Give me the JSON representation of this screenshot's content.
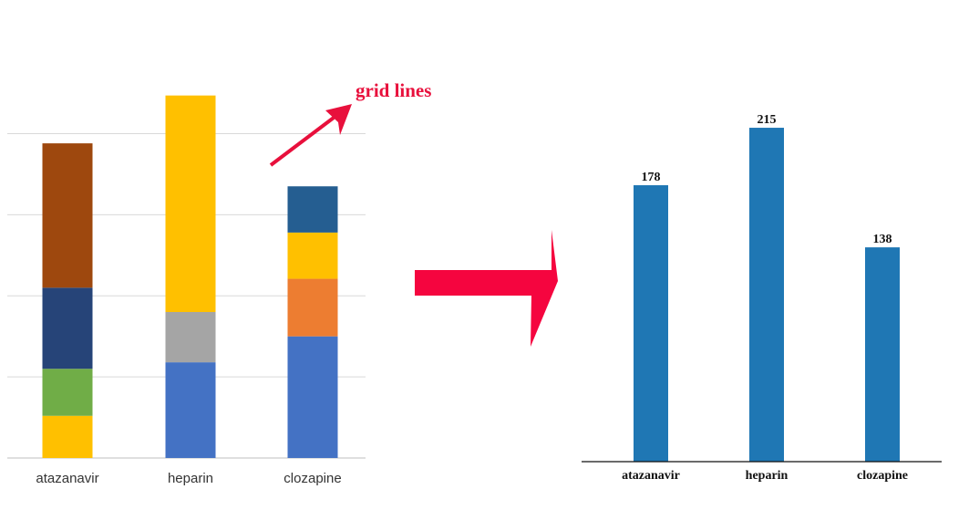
{
  "annotation": {
    "text": "grid lines",
    "color": "#e8103c"
  },
  "colors": {
    "arrow": "#f5053f",
    "bar": "#1f77b4",
    "grid": "#d9d9d9",
    "axis": "#111111"
  },
  "chart_data": [
    {
      "type": "bar",
      "stacked": true,
      "categories": [
        "atazanavir",
        "heparin",
        "clozapine"
      ],
      "series": [
        {
          "color": "#ffc000",
          "values": [
            52,
            0,
            0
          ]
        },
        {
          "color": "#4472c4",
          "values": [
            0,
            118,
            150
          ]
        },
        {
          "color": "#70ad47",
          "values": [
            58,
            0,
            0
          ]
        },
        {
          "color": "#a5a5a5",
          "values": [
            0,
            62,
            0
          ]
        },
        {
          "color": "#ed7d31",
          "values": [
            0,
            0,
            71
          ]
        },
        {
          "color": "#264478",
          "values": [
            100,
            0,
            0
          ]
        },
        {
          "color": "#ffc000",
          "values": [
            0,
            267,
            57
          ]
        },
        {
          "color": "#9e480e",
          "values": [
            178,
            0,
            0
          ]
        },
        {
          "color": "#255e91",
          "values": [
            0,
            0,
            57
          ]
        }
      ],
      "ylim": [
        0,
        450
      ],
      "gridlines": [
        100,
        200,
        300,
        400
      ],
      "grid": true,
      "legend": "none",
      "xlabel": "",
      "ylabel": ""
    },
    {
      "type": "bar",
      "categories": [
        "atazanavir",
        "heparin",
        "clozapine"
      ],
      "values": [
        178,
        215,
        138
      ],
      "data_labels": [
        "178",
        "215",
        "138"
      ],
      "ylim": [
        0,
        235
      ],
      "grid": false,
      "legend": "none",
      "xlabel": "",
      "ylabel": ""
    }
  ]
}
